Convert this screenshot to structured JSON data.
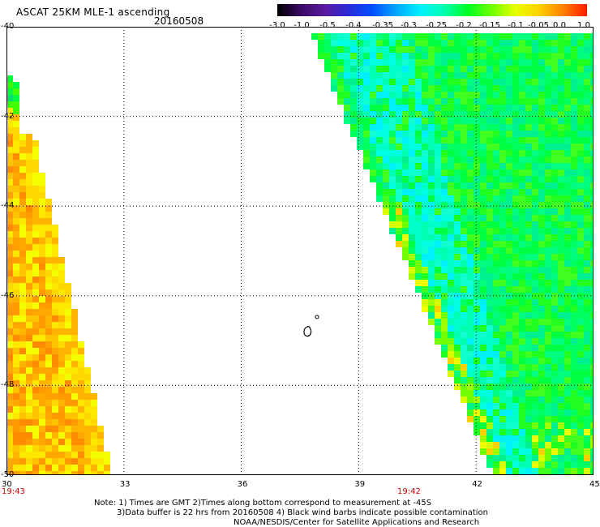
{
  "header": {
    "title": "ASCAT 25KM MLE-1 ascending",
    "date": "20160508"
  },
  "colorbar": {
    "ticks": [
      "-3.0",
      "-1.0",
      "-0.5",
      "-0.4",
      "-0.35",
      "-0.3",
      "-0.25",
      "-0.2",
      "-0.15",
      "-0.1",
      "-0.05",
      "0.0",
      "1.0"
    ],
    "stops": [
      "#000000",
      "#3b0a66",
      "#5a1aa0",
      "#2a2ad8",
      "#0050ff",
      "#00a8ff",
      "#00f0ff",
      "#00ffb0",
      "#00ff20",
      "#70ff00",
      "#e8ff00",
      "#ffd000",
      "#ff8000",
      "#ff1a00"
    ]
  },
  "map": {
    "lon_range": [
      30,
      45
    ],
    "lat_range": [
      -50,
      -40
    ],
    "lon_ticks": [
      "30",
      "33",
      "36",
      "39",
      "42",
      "45"
    ],
    "lat_ticks": [
      "-40",
      "-42",
      "-44",
      "-46",
      "-48",
      "-50"
    ],
    "time_labels": [
      "19:43",
      "19:42"
    ],
    "swaths": [
      {
        "name": "west-swath",
        "dominant_color": "#ffa000"
      },
      {
        "name": "east-swath",
        "dominant_color": "#00ff40"
      }
    ]
  },
  "notes": {
    "line1": "Note: 1) Times are GMT 2)Times along bottom correspond to measurement at -45S",
    "line2": "3)Data buffer is 22 hrs from 20160508 4) Black wind barbs indicate possible contamination",
    "line3": "NOAA/NESDIS/Center for Satellite Applications and Research"
  }
}
